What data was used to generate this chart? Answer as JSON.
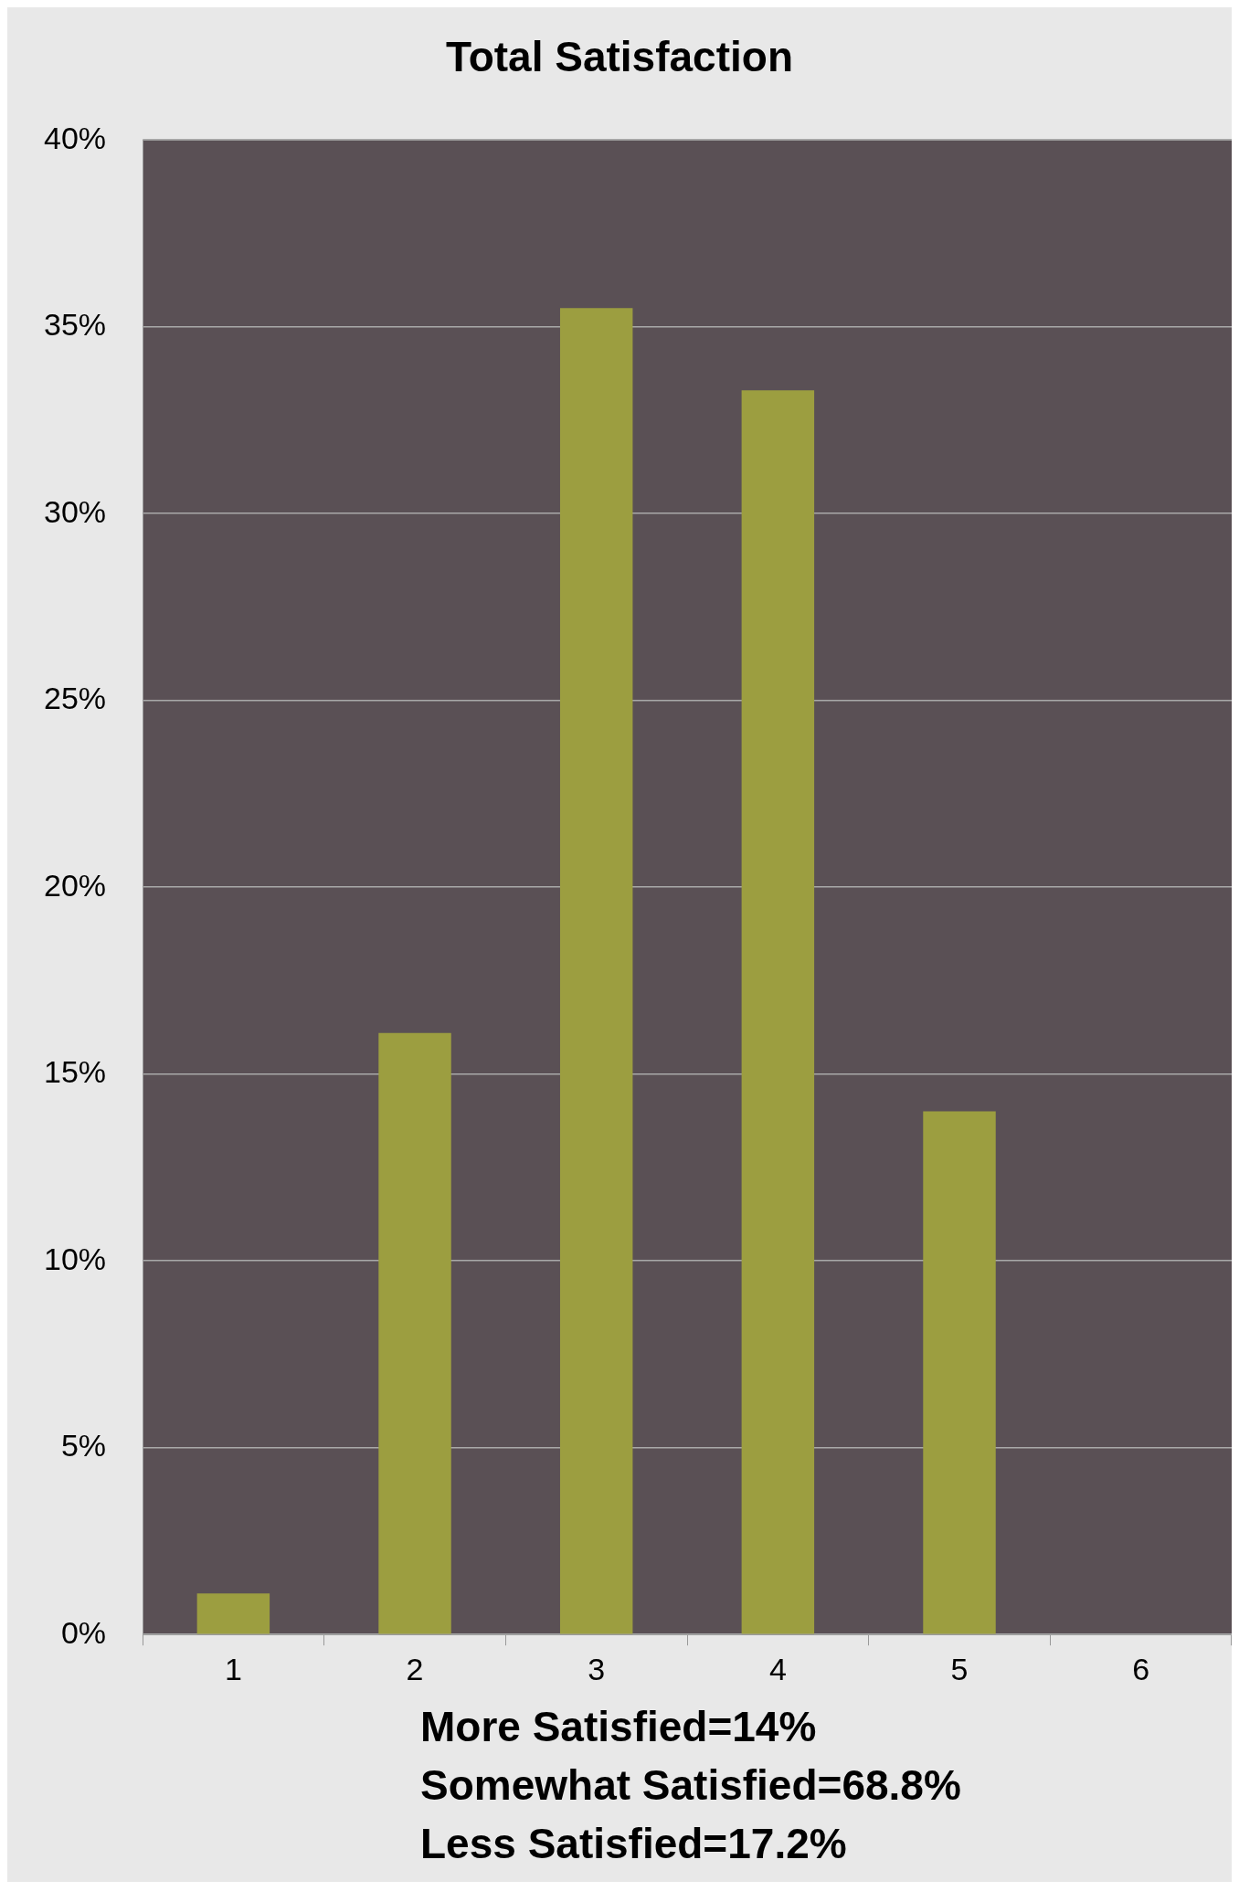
{
  "chart_data": {
    "type": "bar",
    "title": "Total Satisfaction",
    "categories": [
      "1",
      "2",
      "3",
      "4",
      "5",
      "6"
    ],
    "values": [
      1.1,
      16.1,
      35.5,
      33.3,
      14.0,
      0
    ],
    "color": "#9c9e40",
    "ylim": [
      0,
      40
    ],
    "yticks": [
      {
        "value": 0,
        "label": "0%"
      },
      {
        "value": 5,
        "label": "5%"
      },
      {
        "value": 10,
        "label": "10%"
      },
      {
        "value": 15,
        "label": "15%"
      },
      {
        "value": 20,
        "label": "20%"
      },
      {
        "value": 25,
        "label": "25%"
      },
      {
        "value": 30,
        "label": "30%"
      },
      {
        "value": 35,
        "label": "35%"
      },
      {
        "value": 40,
        "label": "40%"
      }
    ],
    "grid": "y",
    "legend": false,
    "annotations": [
      "More Satisfied=14%",
      "Somewhat Satisfied=68.8%",
      "Less Satisfied=17.2%"
    ]
  }
}
